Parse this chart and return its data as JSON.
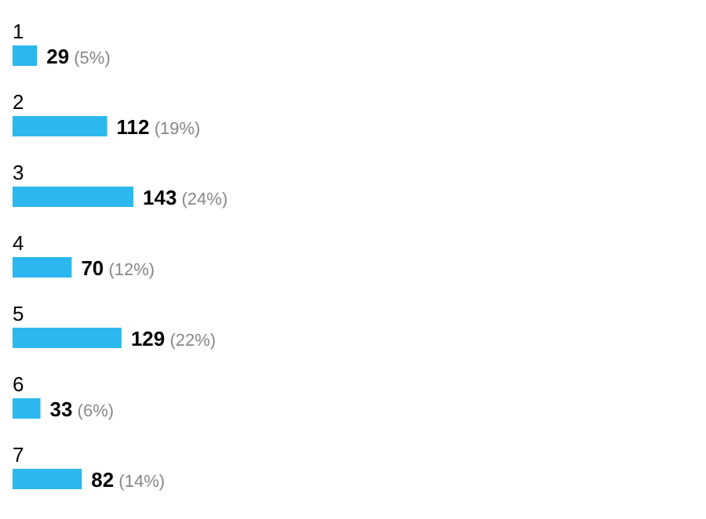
{
  "chart_data": {
    "type": "bar",
    "orientation": "horizontal",
    "categories": [
      "1",
      "2",
      "3",
      "4",
      "5",
      "6",
      "7"
    ],
    "values": [
      29,
      112,
      143,
      70,
      129,
      33,
      82
    ],
    "value_labels": [
      "29 (5%)",
      "112 (19%)",
      "143 (24%)",
      "70 (12%)",
      "129 (22%)",
      "33 (6%)",
      "82 (14%)"
    ],
    "color": "#2cb7ee",
    "grid": false,
    "legend": false
  }
}
